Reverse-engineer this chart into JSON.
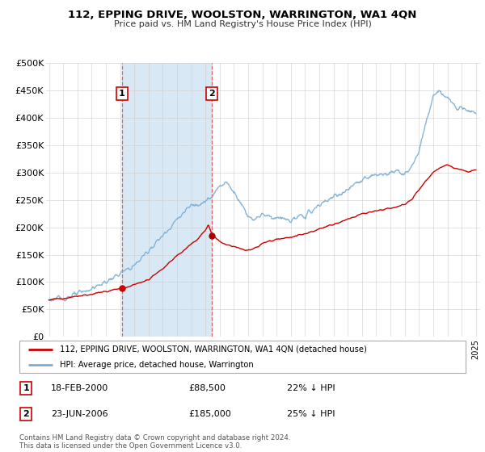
{
  "title": "112, EPPING DRIVE, WOOLSTON, WARRINGTON, WA1 4QN",
  "subtitle": "Price paid vs. HM Land Registry's House Price Index (HPI)",
  "legend_line1": "112, EPPING DRIVE, WOOLSTON, WARRINGTON, WA1 4QN (detached house)",
  "legend_line2": "HPI: Average price, detached house, Warrington",
  "footnote": "Contains HM Land Registry data © Crown copyright and database right 2024.\nThis data is licensed under the Open Government Licence v3.0.",
  "sale1_date": "18-FEB-2000",
  "sale1_price": "£88,500",
  "sale1_hpi": "22% ↓ HPI",
  "sale2_date": "23-JUN-2006",
  "sale2_price": "£185,000",
  "sale2_hpi": "25% ↓ HPI",
  "ylim": [
    0,
    500000
  ],
  "yticks": [
    0,
    50000,
    100000,
    150000,
    200000,
    250000,
    300000,
    350000,
    400000,
    450000,
    500000
  ],
  "ytick_labels": [
    "£0",
    "£50K",
    "£100K",
    "£150K",
    "£200K",
    "£250K",
    "£300K",
    "£350K",
    "£400K",
    "£450K",
    "£500K"
  ],
  "xlim_start": 1994.8,
  "xlim_end": 2025.3,
  "hpi_color": "#7aadd4",
  "price_color": "#cc0000",
  "sale1_x": 2000.12,
  "sale2_x": 2006.47,
  "sale1_price_val": 88500,
  "sale2_price_val": 185000,
  "vline_color": "#e06060",
  "shade_color": "#d8e8f5",
  "grid_color": "#cccccc"
}
